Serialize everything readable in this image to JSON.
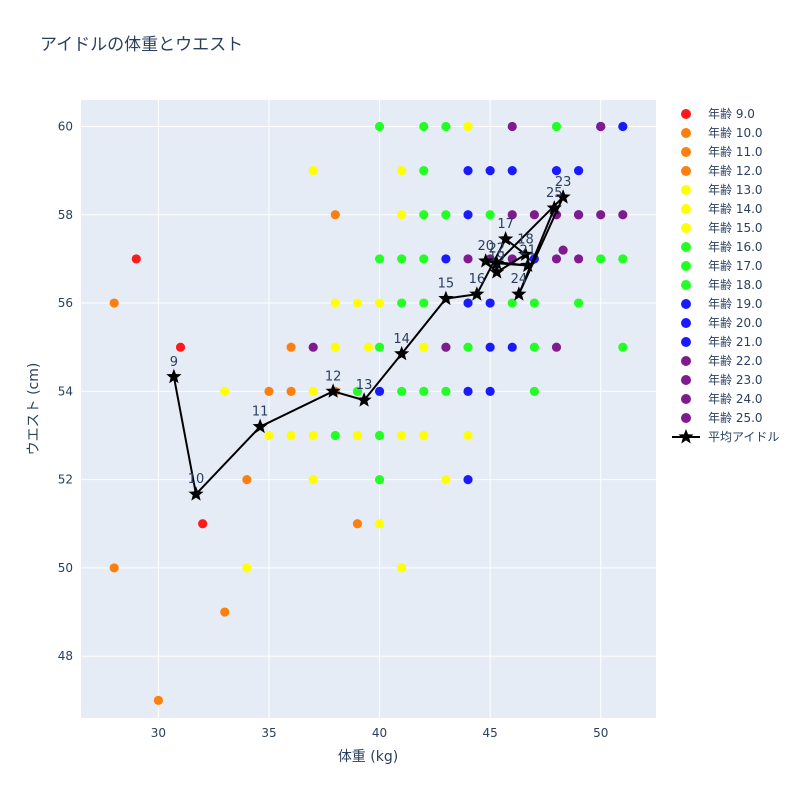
{
  "chart_data": {
    "type": "scatter",
    "title": "アイドルの体重とウエスト",
    "xlabel": "体重 (kg)",
    "ylabel": "ウエスト (cm)",
    "xlim": [
      26.5,
      52.5
    ],
    "ylim": [
      46.6,
      60.6
    ],
    "x_ticks": [
      30,
      35,
      40,
      45,
      50
    ],
    "y_ticks": [
      48,
      50,
      52,
      54,
      56,
      58,
      60
    ],
    "grid": true,
    "legend_position": "right",
    "series": [
      {
        "name": "年齢 9.0",
        "color": "#ff1a1a",
        "points": [
          [
            29,
            57
          ],
          [
            31,
            55
          ],
          [
            32,
            51
          ]
        ]
      },
      {
        "name": "年齢 10.0",
        "color": "#ff7f0e",
        "points": [
          [
            28,
            56
          ],
          [
            28,
            50
          ],
          [
            30,
            47
          ],
          [
            33,
            49
          ]
        ]
      },
      {
        "name": "年齢 11.0",
        "color": "#ff7f0e",
        "points": [
          [
            34,
            52
          ],
          [
            35,
            54
          ],
          [
            36,
            54
          ],
          [
            36,
            55
          ]
        ]
      },
      {
        "name": "年齢 12.0",
        "color": "#ff7f0e",
        "points": [
          [
            38,
            58
          ],
          [
            38,
            54
          ],
          [
            39,
            51
          ]
        ]
      },
      {
        "name": "年齢 13.0",
        "color": "#ffff00",
        "points": [
          [
            33,
            54
          ],
          [
            34,
            50
          ],
          [
            35,
            53
          ],
          [
            36,
            53
          ],
          [
            37,
            53
          ],
          [
            37,
            52
          ],
          [
            37,
            54
          ],
          [
            37,
            59
          ],
          [
            38,
            55
          ]
        ]
      },
      {
        "name": "年齢 14.0",
        "color": "#ffff00",
        "points": [
          [
            38,
            56
          ],
          [
            39,
            56
          ],
          [
            39,
            53
          ],
          [
            39,
            54
          ],
          [
            39.5,
            55
          ],
          [
            40,
            56
          ],
          [
            40,
            51
          ],
          [
            40,
            53
          ],
          [
            41,
            53
          ],
          [
            41,
            50
          ],
          [
            41,
            58
          ],
          [
            41,
            59
          ]
        ]
      },
      {
        "name": "年齢 15.0",
        "color": "#ffff00",
        "points": [
          [
            42,
            53
          ],
          [
            42,
            55
          ],
          [
            43,
            52
          ],
          [
            43,
            57
          ],
          [
            44,
            56
          ],
          [
            44,
            53
          ],
          [
            44,
            60
          ],
          [
            42,
            58
          ]
        ]
      },
      {
        "name": "年齢 16.0",
        "color": "#22ff22",
        "points": [
          [
            38,
            53
          ],
          [
            39,
            54
          ],
          [
            40,
            55
          ],
          [
            40,
            57
          ],
          [
            40,
            60
          ],
          [
            40,
            53
          ],
          [
            40,
            52
          ],
          [
            41,
            56
          ],
          [
            41,
            54
          ]
        ]
      },
      {
        "name": "年齢 17.0",
        "color": "#22ff22",
        "points": [
          [
            41,
            57
          ],
          [
            42,
            57
          ],
          [
            42,
            56
          ],
          [
            42,
            54
          ],
          [
            42,
            58
          ],
          [
            42,
            60
          ],
          [
            42,
            59
          ],
          [
            43,
            55
          ],
          [
            43,
            54
          ],
          [
            43,
            58
          ],
          [
            43,
            60
          ]
        ]
      },
      {
        "name": "年齢 18.0",
        "color": "#22ff22",
        "points": [
          [
            44,
            55
          ],
          [
            45,
            58
          ],
          [
            46,
            56
          ],
          [
            47,
            56
          ],
          [
            47,
            55
          ],
          [
            47,
            54
          ],
          [
            48,
            60
          ],
          [
            49,
            56
          ],
          [
            50,
            57
          ],
          [
            51,
            57
          ],
          [
            51,
            55
          ]
        ]
      },
      {
        "name": "年齢 19.0",
        "color": "#1a1aff",
        "points": [
          [
            40,
            54
          ],
          [
            43,
            57
          ],
          [
            44,
            56
          ],
          [
            44,
            59
          ],
          [
            44,
            54
          ],
          [
            44,
            52
          ]
        ]
      },
      {
        "name": "年齢 20.0",
        "color": "#1a1aff",
        "points": [
          [
            44,
            58
          ],
          [
            45,
            59
          ],
          [
            45,
            55
          ],
          [
            45,
            54
          ],
          [
            45,
            56
          ],
          [
            46,
            55
          ],
          [
            46,
            59
          ]
        ]
      },
      {
        "name": "年齢 21.0",
        "color": "#1a1aff",
        "points": [
          [
            47,
            57
          ],
          [
            48,
            59
          ],
          [
            49,
            59
          ],
          [
            49,
            58
          ],
          [
            50,
            60
          ],
          [
            51,
            60
          ]
        ]
      },
      {
        "name": "年齢 22.0",
        "color": "#7f1a8f",
        "points": [
          [
            37,
            55
          ],
          [
            43,
            55
          ],
          [
            44,
            57
          ],
          [
            45,
            57
          ],
          [
            46,
            58
          ]
        ]
      },
      {
        "name": "年齢 23.0",
        "color": "#7f1a8f",
        "points": [
          [
            46,
            57
          ],
          [
            47,
            58
          ],
          [
            48,
            57
          ],
          [
            48,
            55
          ],
          [
            49,
            57
          ]
        ]
      },
      {
        "name": "年齢 24.0",
        "color": "#7f1a8f",
        "points": [
          [
            48,
            58
          ],
          [
            49,
            58
          ],
          [
            50,
            58
          ],
          [
            51,
            58
          ]
        ]
      },
      {
        "name": "年齢 25.0",
        "color": "#7f1a8f",
        "points": [
          [
            46,
            60
          ],
          [
            50,
            60
          ],
          [
            48.3,
            57.2
          ]
        ]
      }
    ],
    "mean_series": {
      "name": "平均アイドル",
      "color": "#000000",
      "points": [
        {
          "label": "9",
          "x": 30.7,
          "y": 54.33
        },
        {
          "label": "10",
          "x": 31.7,
          "y": 51.67
        },
        {
          "label": "11",
          "x": 34.6,
          "y": 53.2
        },
        {
          "label": "12",
          "x": 37.9,
          "y": 54.0
        },
        {
          "label": "13",
          "x": 39.3,
          "y": 53.8
        },
        {
          "label": "14",
          "x": 41.0,
          "y": 54.85
        },
        {
          "label": "15",
          "x": 43.0,
          "y": 56.1
        },
        {
          "label": "16",
          "x": 44.4,
          "y": 56.2
        },
        {
          "label": "17",
          "x": 45.7,
          "y": 57.45
        },
        {
          "label": "18",
          "x": 46.6,
          "y": 57.1
        },
        {
          "label": "19",
          "x": 45.3,
          "y": 56.7
        },
        {
          "label": "20",
          "x": 44.8,
          "y": 56.95
        },
        {
          "label": "21",
          "x": 46.7,
          "y": 56.85
        },
        {
          "label": "22",
          "x": 45.3,
          "y": 56.9
        },
        {
          "label": "23",
          "x": 48.3,
          "y": 58.4
        },
        {
          "label": "24",
          "x": 46.3,
          "y": 56.2
        },
        {
          "label": "25",
          "x": 47.9,
          "y": 58.15
        }
      ]
    }
  }
}
